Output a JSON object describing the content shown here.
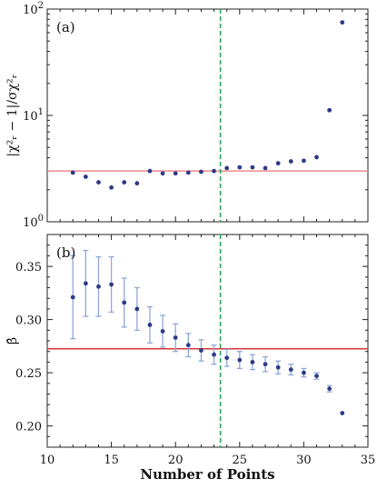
{
  "chart_data": [
    {
      "type": "scatter",
      "panel_label": "(a)",
      "ylabel": "|χ²ᵣ − 1|/σχ²ᵣ",
      "yscale": "log",
      "ylim": [
        1,
        100
      ],
      "xlim": [
        10,
        35
      ],
      "yticks": [
        {
          "value": 1,
          "mantissa": "10",
          "exp": "0"
        },
        {
          "value": 10,
          "mantissa": "10",
          "exp": "1"
        },
        {
          "value": 100,
          "mantissa": "10",
          "exp": "2"
        }
      ],
      "hline": {
        "value": 3.0,
        "color": "#f08a8a"
      },
      "vline": {
        "value": 23.5,
        "color": "#2ca25f"
      },
      "marker_color": "#2e3a87",
      "points": [
        {
          "x": 12,
          "y": 2.9
        },
        {
          "x": 13,
          "y": 2.65
        },
        {
          "x": 14,
          "y": 2.35
        },
        {
          "x": 15,
          "y": 2.1
        },
        {
          "x": 16,
          "y": 2.35
        },
        {
          "x": 17,
          "y": 2.3
        },
        {
          "x": 18,
          "y": 3.0
        },
        {
          "x": 19,
          "y": 2.85
        },
        {
          "x": 20,
          "y": 2.85
        },
        {
          "x": 21,
          "y": 2.9
        },
        {
          "x": 22,
          "y": 2.95
        },
        {
          "x": 23,
          "y": 3.0
        },
        {
          "x": 24,
          "y": 3.2
        },
        {
          "x": 25,
          "y": 3.25
        },
        {
          "x": 26,
          "y": 3.25
        },
        {
          "x": 27,
          "y": 3.2
        },
        {
          "x": 28,
          "y": 3.55
        },
        {
          "x": 29,
          "y": 3.7
        },
        {
          "x": 30,
          "y": 3.75
        },
        {
          "x": 31,
          "y": 4.05
        },
        {
          "x": 32,
          "y": 11.2
        },
        {
          "x": 33,
          "y": 75
        }
      ]
    },
    {
      "type": "scatter",
      "panel_label": "(b)",
      "ylabel": "β̂",
      "yscale": "linear",
      "ylim": [
        0.18,
        0.38
      ],
      "xlim": [
        10,
        35
      ],
      "yticks": [
        0.2,
        0.25,
        0.3,
        0.35
      ],
      "xticks": [
        10,
        15,
        20,
        25,
        30,
        35
      ],
      "xlabel": "Number of Points",
      "hline": {
        "value": 0.2725,
        "color": "#d9343a"
      },
      "vline": {
        "value": 23.5,
        "color": "#2ca25f"
      },
      "marker_color": "#2e3a87",
      "errorbar_color": "#8fa8d8",
      "points": [
        {
          "x": 12,
          "y": 0.321,
          "err": 0.039
        },
        {
          "x": 13,
          "y": 0.334,
          "err": 0.031
        },
        {
          "x": 14,
          "y": 0.331,
          "err": 0.028
        },
        {
          "x": 15,
          "y": 0.333,
          "err": 0.026
        },
        {
          "x": 16,
          "y": 0.316,
          "err": 0.023
        },
        {
          "x": 17,
          "y": 0.31,
          "err": 0.02
        },
        {
          "x": 18,
          "y": 0.295,
          "err": 0.017
        },
        {
          "x": 19,
          "y": 0.289,
          "err": 0.015
        },
        {
          "x": 20,
          "y": 0.283,
          "err": 0.013
        },
        {
          "x": 21,
          "y": 0.276,
          "err": 0.011
        },
        {
          "x": 22,
          "y": 0.271,
          "err": 0.01
        },
        {
          "x": 23,
          "y": 0.267,
          "err": 0.009
        },
        {
          "x": 24,
          "y": 0.264,
          "err": 0.008
        },
        {
          "x": 25,
          "y": 0.262,
          "err": 0.008
        },
        {
          "x": 26,
          "y": 0.26,
          "err": 0.007
        },
        {
          "x": 27,
          "y": 0.258,
          "err": 0.007
        },
        {
          "x": 28,
          "y": 0.255,
          "err": 0.006
        },
        {
          "x": 29,
          "y": 0.253,
          "err": 0.005
        },
        {
          "x": 30,
          "y": 0.25,
          "err": 0.004
        },
        {
          "x": 31,
          "y": 0.247,
          "err": 0.003
        },
        {
          "x": 32,
          "y": 0.235,
          "err": 0.003
        },
        {
          "x": 33,
          "y": 0.212,
          "err": 0.0
        }
      ]
    }
  ]
}
